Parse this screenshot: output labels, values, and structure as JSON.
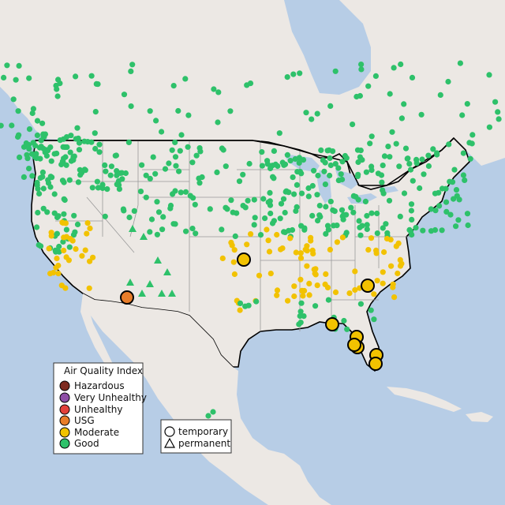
{
  "legend": {
    "title": "Air Quality Index",
    "categories": [
      {
        "label": "Hazardous",
        "color": "#7e2b20"
      },
      {
        "label": "Very Unhealthy",
        "color": "#8e4fa6"
      },
      {
        "label": "Unhealthy",
        "color": "#e2403a"
      },
      {
        "label": "USG",
        "color": "#e87d2a"
      },
      {
        "label": "Moderate",
        "color": "#f2c200"
      },
      {
        "label": "Good",
        "color": "#2ec16a"
      }
    ]
  },
  "shape_legend": {
    "temporary_label": "temporary",
    "permanent_label": "permanent"
  },
  "colors": {
    "ocean": "#b7cde6",
    "land_foreign": "#ece8e4",
    "land_us": "#ece8e4",
    "border": "#000000",
    "state_line": "#9a9a9a",
    "good": "#2ec16a",
    "moderate": "#f2c200",
    "usg": "#e87d2a"
  }
}
